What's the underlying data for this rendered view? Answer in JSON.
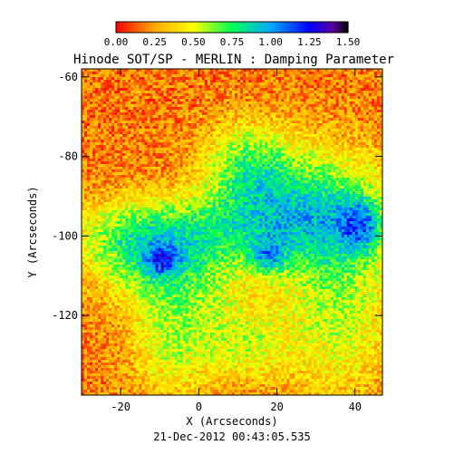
{
  "chart_data": {
    "type": "heatmap",
    "title": "Hinode SOT/SP - MERLIN : Damping Parameter",
    "xlabel": "X (Arcseconds)",
    "ylabel": "Y (Arcseconds)",
    "xlim": [
      -30,
      47
    ],
    "ylim": [
      -140,
      -58
    ],
    "xticks": [
      -20,
      0,
      20,
      40
    ],
    "yticks": [
      -60,
      -80,
      -100,
      -120
    ],
    "colorbar": {
      "range": [
        0,
        1.5
      ],
      "ticks": [
        "0.00",
        "0.25",
        "0.50",
        "0.75",
        "1.00",
        "1.25",
        "1.50"
      ],
      "stops": [
        {
          "v": 0.0,
          "color": "#ff0000"
        },
        {
          "v": 0.25,
          "color": "#ffaa00"
        },
        {
          "v": 0.5,
          "color": "#ffff00"
        },
        {
          "v": 0.75,
          "color": "#00ff55"
        },
        {
          "v": 1.0,
          "color": "#00aaff"
        },
        {
          "v": 1.25,
          "color": "#0000ff"
        },
        {
          "v": 1.4,
          "color": "#5a00a0"
        },
        {
          "v": 1.5,
          "color": "#000000"
        }
      ]
    },
    "description_regions": "background mostly red/orange (~0.1-0.3); green-yellow band (~0.5-0.75) crossing from upper-middle to lower-left and right side; scattered blue patches (~1.0-1.25) near right edge",
    "timestamp": "21-Dec-2012 00:43:05.535"
  }
}
